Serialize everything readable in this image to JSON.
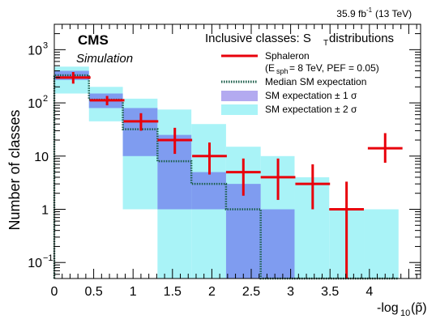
{
  "chart_data": {
    "type": "bar",
    "lumi_label": "35.9 fb",
    "lumi_sup": "-1",
    "energy_label": " (13 TeV)",
    "experiment": "CMS",
    "experiment_sub": "Simulation",
    "header": "Inclusive classes: S",
    "header_sub": "T",
    "header_tail": " distributions",
    "xlabel": "-log",
    "xlabel_sub": "10",
    "xlabel_arg": "(p̃)",
    "ylabel": "Number of classes",
    "xlim": [
      0,
      4.65
    ],
    "ylim": [
      0.05,
      3000
    ],
    "yscale": "log",
    "x_ticks": [
      "0",
      "0.5",
      "1",
      "1.5",
      "2",
      "2.5",
      "3",
      "3.5",
      "4"
    ],
    "y_ticks": [
      {
        "base": "10",
        "exp": "−1",
        "value": 0.1
      },
      {
        "base": "1",
        "exp": "",
        "value": 1
      },
      {
        "base": "10",
        "exp": "",
        "value": 10
      },
      {
        "base": "10",
        "exp": "2",
        "value": 100
      },
      {
        "base": "10",
        "exp": "3",
        "value": 1000
      }
    ],
    "bin_edges": [
      0,
      0.44,
      0.87,
      1.31,
      1.74,
      2.18,
      2.62,
      3.05,
      3.49,
      3.93,
      4.37
    ],
    "median": [
      330,
      115,
      32,
      8,
      3,
      1,
      0.05,
      0.05,
      0.05,
      0.05
    ],
    "band_1sigma": [
      [
        270,
        400
      ],
      [
        80,
        150
      ],
      [
        10,
        80
      ],
      [
        1,
        25
      ],
      [
        1,
        5
      ],
      [
        0.05,
        3
      ],
      [
        0.05,
        1
      ],
      [
        0.05,
        0.05
      ],
      [
        0.05,
        0.05
      ],
      [
        0.05,
        0.05
      ]
    ],
    "band_2sigma": [
      [
        150,
        480
      ],
      [
        45,
        200
      ],
      [
        1,
        120
      ],
      [
        0.05,
        75
      ],
      [
        0.05,
        40
      ],
      [
        0.05,
        15
      ],
      [
        0.05,
        10
      ],
      [
        0.05,
        4
      ],
      [
        0.05,
        1
      ],
      [
        0.05,
        1
      ]
    ],
    "signal": {
      "name": "Sphaleron",
      "params": "(E",
      "params_sub": "sph",
      "params_tail": "= 8 TeV, PEF = 0.05)",
      "x": [
        0.24,
        0.67,
        1.1,
        1.53,
        1.97,
        2.4,
        2.84,
        3.28,
        3.71,
        4.2
      ],
      "y": [
        300,
        112,
        45,
        20,
        10,
        5,
        4,
        3,
        1,
        14
      ],
      "yerr_low": [
        230,
        90,
        30,
        11,
        4.5,
        1.8,
        1.5,
        1.0,
        0.05,
        7.5
      ],
      "yerr_high": [
        380,
        135,
        64,
        34,
        18,
        9,
        9,
        7,
        3.3,
        27
      ]
    },
    "legend": [
      {
        "label": "Median SM expectation",
        "style": "dotted-line"
      },
      {
        "label": "SM expectation ± 1 σ",
        "style": "box-1sigma"
      },
      {
        "label": "SM expectation ± 2 σ",
        "style": "box-2sigma"
      }
    ],
    "colors": {
      "signal": "#e8000b",
      "median": "#1b5e4a",
      "band_1sigma": "#7f9cf0",
      "band_2sigma": "#a9f3f7",
      "legend_1sigma": "#b3aaf0"
    }
  }
}
